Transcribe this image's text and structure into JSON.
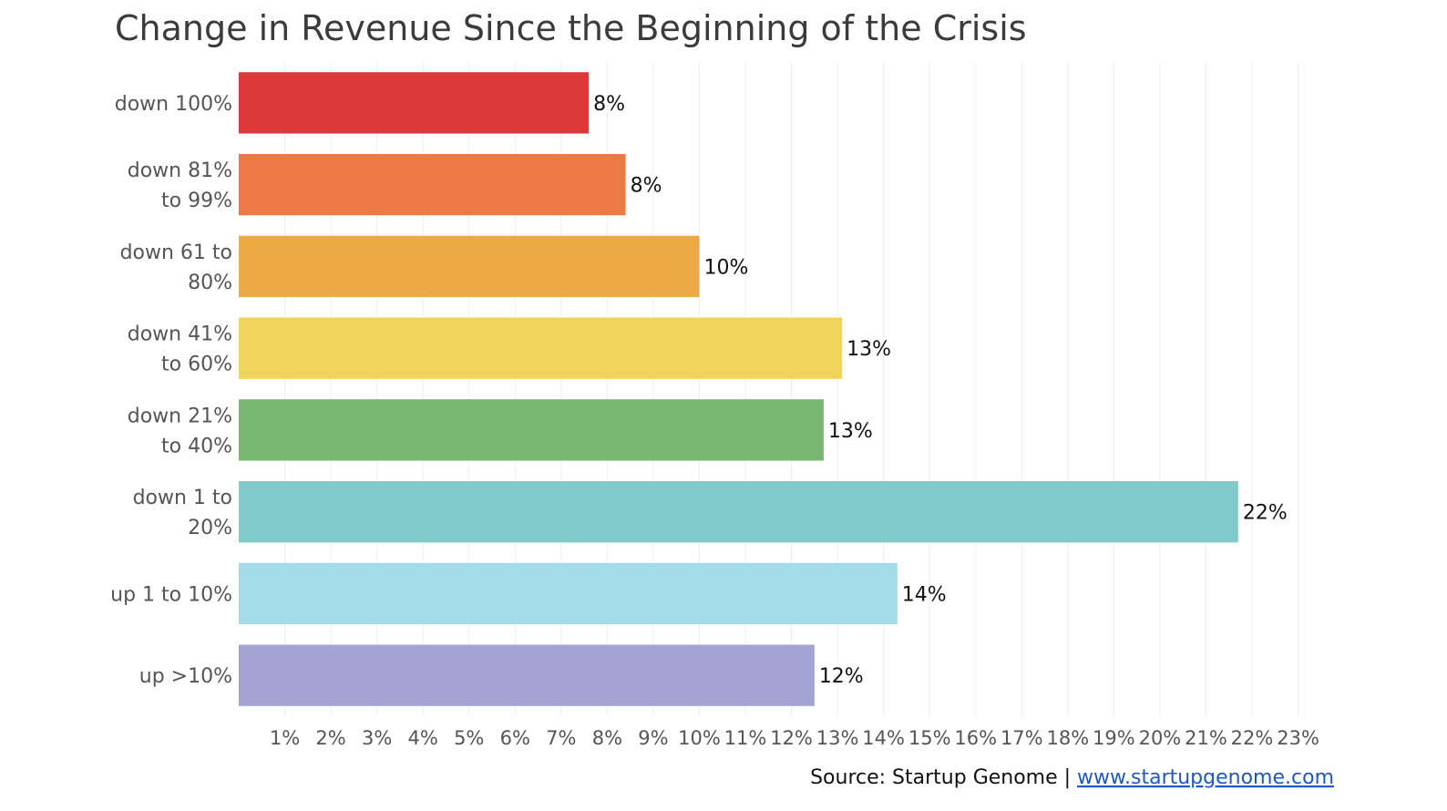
{
  "chart_data": {
    "type": "bar",
    "orientation": "horizontal",
    "title": "Change in Revenue Since the Beginning of the Crisis",
    "categories": [
      [
        "down 100%"
      ],
      [
        "down 81%",
        "to 99%"
      ],
      [
        "down 61 to",
        "80%"
      ],
      [
        "down 41%",
        "to 60%"
      ],
      [
        "down 21%",
        "to 40%"
      ],
      [
        "down 1 to",
        "20%"
      ],
      [
        "up 1 to 10%"
      ],
      [
        "up >10%"
      ]
    ],
    "values": [
      7.6,
      8.4,
      10.0,
      13.1,
      12.7,
      21.7,
      14.3,
      12.5
    ],
    "data_labels": [
      "8%",
      "8%",
      "10%",
      "13%",
      "13%",
      "22%",
      "14%",
      "12%"
    ],
    "colors": [
      "#dc3a38",
      "#ed7a44",
      "#eda946",
      "#f2d35c",
      "#77b76f",
      "#7fcbcc",
      "#a4dbe9",
      "#a3a4d3"
    ],
    "x_ticks": [
      "1%",
      "2%",
      "3%",
      "4%",
      "5%",
      "6%",
      "7%",
      "8%",
      "9%",
      "10%",
      "11%",
      "12%",
      "13%",
      "14%",
      "15%",
      "16%",
      "17%",
      "18%",
      "19%",
      "20%",
      "21%",
      "22%",
      "23%"
    ],
    "xlim": [
      0,
      23.8
    ],
    "grid": true
  },
  "footer": {
    "source_text": "Source: Startup Genome | ",
    "source_link": "www.startupgenome.com"
  }
}
